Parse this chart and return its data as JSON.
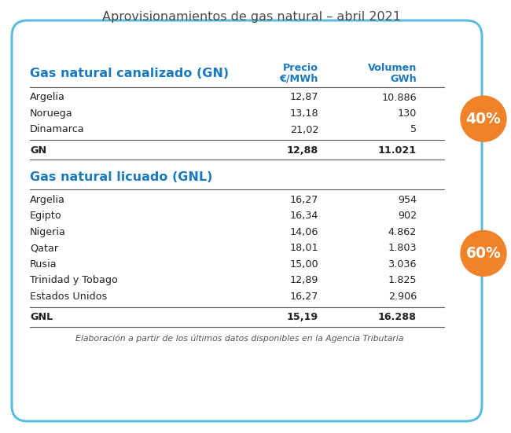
{
  "title": "Aprovisionamientos de gas natural – abril 2021",
  "title_color": "#4a4a4a",
  "background_color": "#ffffff",
  "border_color": "#5bbcdd",
  "section1_header": "Gas natural canalizado (GN)",
  "section1_header_color": "#1a7abf",
  "section2_header": "Gas natural licuado (GNL)",
  "section2_header_color": "#1a7abf",
  "col_precio_label": "Precio",
  "col_volumen_label": "Volumen",
  "col_precio_unit": "€/MWh",
  "col_volumen_unit": "GWh",
  "col_header_color": "#1a7abf",
  "gn_rows": [
    {
      "country": "Argelia",
      "precio": "12,87",
      "volumen": "10.886"
    },
    {
      "country": "Noruega",
      "precio": "13,18",
      "volumen": "130"
    },
    {
      "country": "Dinamarca",
      "precio": "21,02",
      "volumen": "5"
    }
  ],
  "gn_total": {
    "label": "GN",
    "precio": "12,88",
    "volumen": "11.021"
  },
  "gnl_rows": [
    {
      "country": "Argelia",
      "precio": "16,27",
      "volumen": "954"
    },
    {
      "country": "Egipto",
      "precio": "16,34",
      "volumen": "902"
    },
    {
      "country": "Nigeria",
      "precio": "14,06",
      "volumen": "4.862"
    },
    {
      "country": "Qatar",
      "precio": "18,01",
      "volumen": "1.803"
    },
    {
      "country": "Rusia",
      "precio": "15,00",
      "volumen": "3.036"
    },
    {
      "country": "Trinidad y Tobago",
      "precio": "12,89",
      "volumen": "1.825"
    },
    {
      "country": "Estados Unidos",
      "precio": "16,27",
      "volumen": "2.906"
    }
  ],
  "gnl_total": {
    "label": "GNL",
    "precio": "15,19",
    "volumen": "16.288"
  },
  "badge1_text": "40%",
  "badge2_text": "60%",
  "badge_color": "#f0832a",
  "badge_text_color": "#ffffff",
  "footer": "Elaboración a partir de los últimos datos disponibles en la Agencia Tributaria",
  "footer_color": "#555555",
  "line_color": "#555555",
  "row_text_color": "#222222",
  "total_text_color": "#111111",
  "fig_width": 6.5,
  "fig_height": 5.51,
  "dpi": 100
}
